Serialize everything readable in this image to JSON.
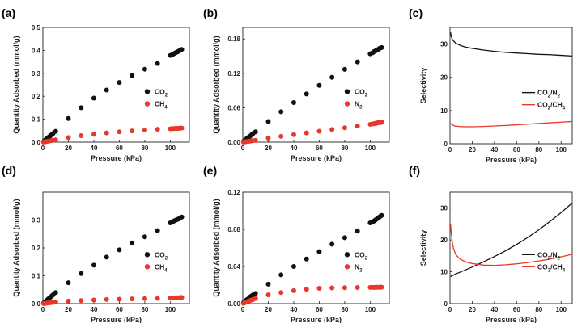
{
  "colors": {
    "black_series": "#111111",
    "red_series": "#e8382b",
    "axis": "#222222"
  },
  "chart_data": [
    {
      "panel": "(a)",
      "type": "scatter",
      "xlabel": "Pressure (kPa)",
      "ylabel": "Quantity Adsorbed (mmol/g)",
      "xlim": [
        0,
        115
      ],
      "ylim": [
        0,
        0.5
      ],
      "xticks": [
        0,
        20,
        40,
        60,
        80,
        100
      ],
      "yticks": [
        0.0,
        0.1,
        0.2,
        0.3,
        0.4,
        0.5
      ],
      "ytick_labels": [
        "0.0",
        "0.1",
        "0.2",
        "0.3",
        "0.4",
        "0.5"
      ],
      "legend_position": "middle-right",
      "series": [
        {
          "name": "CO2",
          "color": "#111111",
          "x": [
            0.5,
            1,
            2,
            3,
            4,
            5,
            6,
            7,
            8,
            10,
            20,
            30,
            40,
            50,
            60,
            70,
            80,
            90,
            100,
            102,
            103,
            104,
            105,
            106,
            107,
            108,
            109
          ],
          "y": [
            0.002,
            0.005,
            0.01,
            0.015,
            0.019,
            0.024,
            0.028,
            0.033,
            0.038,
            0.047,
            0.103,
            0.15,
            0.192,
            0.227,
            0.26,
            0.29,
            0.318,
            0.343,
            0.378,
            0.383,
            0.386,
            0.389,
            0.392,
            0.395,
            0.398,
            0.401,
            0.404
          ]
        },
        {
          "name": "CH4",
          "color": "#e8382b",
          "x": [
            0.5,
            1,
            2,
            3,
            4,
            5,
            6,
            7,
            8,
            10,
            20,
            30,
            40,
            50,
            60,
            70,
            80,
            90,
            100,
            102,
            103,
            104,
            105,
            106,
            107,
            108,
            109
          ],
          "y": [
            0.0005,
            0.001,
            0.002,
            0.003,
            0.004,
            0.005,
            0.006,
            0.007,
            0.008,
            0.01,
            0.02,
            0.028,
            0.034,
            0.04,
            0.045,
            0.049,
            0.053,
            0.056,
            0.058,
            0.059,
            0.059,
            0.06,
            0.06,
            0.06,
            0.06,
            0.061,
            0.061
          ]
        }
      ]
    },
    {
      "panel": "(b)",
      "type": "scatter",
      "xlabel": "Pressure (kPa)",
      "ylabel": "Quantity Adsorbed (mmol/g)",
      "xlim": [
        0,
        115
      ],
      "ylim": [
        0,
        0.2
      ],
      "xticks": [
        0,
        20,
        40,
        60,
        80,
        100
      ],
      "yticks": [
        0.0,
        0.06,
        0.12,
        0.18
      ],
      "ytick_labels": [
        "0.00",
        "0.06",
        "0.12",
        "0.18"
      ],
      "legend_position": "middle-right",
      "series": [
        {
          "name": "CO2",
          "color": "#111111",
          "x": [
            0.5,
            1,
            2,
            3,
            4,
            5,
            6,
            7,
            8,
            10,
            20,
            30,
            40,
            50,
            60,
            70,
            80,
            90,
            100,
            102,
            103,
            104,
            105,
            106,
            107,
            108,
            109
          ],
          "y": [
            0.001,
            0.002,
            0.004,
            0.006,
            0.008,
            0.009,
            0.011,
            0.013,
            0.015,
            0.018,
            0.036,
            0.053,
            0.069,
            0.084,
            0.099,
            0.113,
            0.127,
            0.14,
            0.154,
            0.156,
            0.158,
            0.159,
            0.16,
            0.161,
            0.163,
            0.164,
            0.165
          ]
        },
        {
          "name": "N2",
          "color": "#e8382b",
          "x": [
            0.5,
            1,
            2,
            3,
            4,
            5,
            6,
            7,
            8,
            10,
            20,
            30,
            40,
            50,
            60,
            70,
            80,
            90,
            100,
            102,
            103,
            104,
            105,
            106,
            107,
            108,
            109
          ],
          "y": [
            0.0002,
            0.0003,
            0.0006,
            0.001,
            0.0013,
            0.0016,
            0.002,
            0.0023,
            0.0026,
            0.003,
            0.007,
            0.01,
            0.013,
            0.016,
            0.019,
            0.022,
            0.025,
            0.028,
            0.031,
            0.032,
            0.032,
            0.033,
            0.033,
            0.034,
            0.034,
            0.034,
            0.035
          ]
        }
      ]
    },
    {
      "panel": "(c)",
      "type": "line",
      "xlabel": "Pressure (kPa)",
      "ylabel": "Selectivity",
      "xlim": [
        0,
        110
      ],
      "ylim": [
        0,
        35
      ],
      "xticks": [
        0,
        20,
        40,
        60,
        80,
        100
      ],
      "yticks": [
        0,
        10,
        20,
        30
      ],
      "ytick_labels": [
        "0",
        "10",
        "20",
        "30"
      ],
      "legend_position": "middle-right",
      "series": [
        {
          "name": "CO2/N2",
          "color": "#111111",
          "x": [
            0.5,
            1,
            2,
            3,
            5,
            8,
            10,
            15,
            20,
            30,
            40,
            50,
            60,
            70,
            80,
            90,
            100,
            110
          ],
          "y": [
            33.5,
            32.5,
            31.5,
            31.0,
            30.3,
            29.8,
            29.5,
            29.0,
            28.7,
            28.2,
            27.8,
            27.5,
            27.3,
            27.1,
            26.9,
            26.8,
            26.6,
            26.4
          ]
        },
        {
          "name": "CO2/CH4",
          "color": "#e8382b",
          "x": [
            0.5,
            1,
            2,
            3,
            5,
            8,
            10,
            15,
            20,
            30,
            40,
            50,
            60,
            70,
            80,
            90,
            100,
            110
          ],
          "y": [
            6.2,
            6.0,
            5.7,
            5.5,
            5.3,
            5.2,
            5.15,
            5.1,
            5.1,
            5.2,
            5.35,
            5.5,
            5.7,
            5.9,
            6.1,
            6.3,
            6.5,
            6.7
          ]
        }
      ]
    },
    {
      "panel": "(d)",
      "type": "scatter",
      "xlabel": "Pressure (kPa)",
      "ylabel": "Quantity Adsorbed (mmol/g)",
      "xlim": [
        0,
        115
      ],
      "ylim": [
        0,
        0.4
      ],
      "xticks": [
        0,
        20,
        40,
        60,
        80,
        100
      ],
      "yticks": [
        0.0,
        0.1,
        0.2,
        0.3
      ],
      "ytick_labels": [
        "0.0",
        "0.1",
        "0.2",
        "0.3"
      ],
      "legend_position": "middle-right",
      "series": [
        {
          "name": "CO2",
          "color": "#111111",
          "x": [
            0.5,
            1,
            2,
            3,
            4,
            5,
            6,
            7,
            8,
            10,
            20,
            30,
            40,
            50,
            60,
            70,
            80,
            90,
            100,
            102,
            103,
            104,
            105,
            106,
            107,
            108,
            109
          ],
          "y": [
            0.002,
            0.004,
            0.008,
            0.012,
            0.016,
            0.02,
            0.024,
            0.028,
            0.032,
            0.04,
            0.075,
            0.108,
            0.138,
            0.167,
            0.193,
            0.218,
            0.24,
            0.262,
            0.29,
            0.294,
            0.297,
            0.299,
            0.301,
            0.303,
            0.305,
            0.308,
            0.311
          ]
        },
        {
          "name": "CH4",
          "color": "#e8382b",
          "x": [
            0.5,
            1,
            2,
            3,
            4,
            5,
            6,
            7,
            8,
            10,
            20,
            30,
            40,
            50,
            60,
            70,
            80,
            90,
            100,
            102,
            103,
            104,
            105,
            106,
            107,
            108,
            109
          ],
          "y": [
            0.0003,
            0.0006,
            0.0012,
            0.0018,
            0.0024,
            0.003,
            0.0036,
            0.0042,
            0.0048,
            0.006,
            0.009,
            0.011,
            0.013,
            0.015,
            0.016,
            0.017,
            0.018,
            0.019,
            0.02,
            0.02,
            0.02,
            0.021,
            0.021,
            0.021,
            0.021,
            0.022,
            0.022
          ]
        }
      ]
    },
    {
      "panel": "(e)",
      "type": "scatter",
      "xlabel": "Pressure (kPa)",
      "ylabel": "Quantity Adsorbed (mmol/g)",
      "xlim": [
        0,
        115
      ],
      "ylim": [
        0,
        0.12
      ],
      "xticks": [
        0,
        20,
        40,
        60,
        80,
        100
      ],
      "yticks": [
        0.0,
        0.04,
        0.08,
        0.12
      ],
      "ytick_labels": [
        "0.00",
        "0.04",
        "0.08",
        "0.12"
      ],
      "legend_position": "middle-right",
      "series": [
        {
          "name": "CO2",
          "color": "#111111",
          "x": [
            0.5,
            1,
            2,
            3,
            4,
            5,
            6,
            7,
            8,
            10,
            20,
            30,
            40,
            50,
            60,
            70,
            80,
            90,
            100,
            102,
            103,
            104,
            105,
            106,
            107,
            108,
            109
          ],
          "y": [
            0.001,
            0.0015,
            0.003,
            0.004,
            0.005,
            0.006,
            0.0075,
            0.0085,
            0.0095,
            0.011,
            0.021,
            0.031,
            0.04,
            0.048,
            0.056,
            0.064,
            0.071,
            0.078,
            0.087,
            0.088,
            0.089,
            0.09,
            0.091,
            0.092,
            0.093,
            0.094,
            0.095
          ]
        },
        {
          "name": "N2",
          "color": "#e8382b",
          "x": [
            0.5,
            1,
            2,
            3,
            4,
            5,
            6,
            7,
            8,
            10,
            20,
            30,
            40,
            50,
            60,
            70,
            80,
            90,
            100,
            102,
            103,
            104,
            105,
            106,
            107,
            108,
            109
          ],
          "y": [
            0.0003,
            0.0006,
            0.0012,
            0.0018,
            0.0024,
            0.003,
            0.0035,
            0.004,
            0.0045,
            0.0055,
            0.0095,
            0.012,
            0.014,
            0.0155,
            0.0165,
            0.017,
            0.0172,
            0.0174,
            0.0175,
            0.0175,
            0.0175,
            0.0176,
            0.0176,
            0.0176,
            0.0176,
            0.0177,
            0.0177
          ]
        }
      ]
    },
    {
      "panel": "(f)",
      "type": "line",
      "xlabel": "Pressure (kPa)",
      "ylabel": "Selectivity",
      "xlim": [
        0,
        110
      ],
      "ylim": [
        0,
        35
      ],
      "xticks": [
        0,
        20,
        40,
        60,
        80,
        100
      ],
      "yticks": [
        0,
        10,
        20,
        30
      ],
      "ytick_labels": [
        "0",
        "10",
        "20",
        "30"
      ],
      "legend_position": "middle-right",
      "series": [
        {
          "name": "CO2/N2",
          "color": "#111111",
          "x": [
            0.5,
            5,
            10,
            20,
            30,
            40,
            50,
            60,
            70,
            80,
            90,
            100,
            110
          ],
          "y": [
            8.5,
            9.3,
            10.0,
            11.5,
            13.1,
            14.8,
            16.6,
            18.6,
            20.8,
            23.2,
            25.8,
            28.6,
            31.6
          ]
        },
        {
          "name": "CO2/CH4",
          "color": "#e8382b",
          "x": [
            0.5,
            1,
            2,
            3,
            5,
            8,
            10,
            15,
            20,
            30,
            40,
            50,
            60,
            70,
            80,
            90,
            100,
            110
          ],
          "y": [
            25.0,
            22.5,
            19.5,
            17.5,
            15.5,
            14.3,
            13.8,
            13.0,
            12.6,
            12.1,
            12.0,
            12.2,
            12.5,
            12.9,
            13.4,
            14.0,
            14.7,
            15.5
          ]
        }
      ]
    }
  ]
}
